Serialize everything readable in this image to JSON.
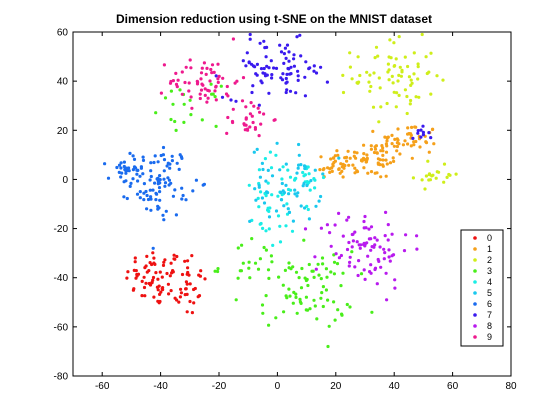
{
  "chart_data": {
    "type": "scatter",
    "title": "Dimension reduction using t-SNE on the MNIST dataset",
    "xlabel": "",
    "ylabel": "",
    "xlim": [
      -70,
      80
    ],
    "ylim": [
      -80,
      60
    ],
    "x_ticks": [
      -60,
      -40,
      -20,
      0,
      20,
      40,
      60,
      80
    ],
    "y_ticks": [
      -80,
      -60,
      -40,
      -20,
      0,
      20,
      40,
      60
    ],
    "grid": false,
    "legend_position": "lower-right",
    "point_count_per_series": [
      100,
      140,
      95,
      120,
      65,
      60,
      120,
      95,
      85,
      90
    ],
    "series": [
      {
        "name": "0",
        "color": "#ee1111",
        "clusters": [
          {
            "cx": -42,
            "cy": -40,
            "sx": 5,
            "sy": 6,
            "n": 60
          },
          {
            "cx": -32,
            "cy": -42,
            "sx": 4,
            "sy": 7,
            "n": 40
          }
        ]
      },
      {
        "name": "1",
        "color": "#f5a01a",
        "clusters": [
          {
            "cx": 30,
            "cy": 8,
            "sx": 7,
            "sy": 4,
            "n": 70
          },
          {
            "cx": 45,
            "cy": 16,
            "sx": 5,
            "sy": 3.5,
            "n": 50
          },
          {
            "cx": 18,
            "cy": 5,
            "sx": 3,
            "sy": 2,
            "n": 20
          }
        ]
      },
      {
        "name": "2",
        "color": "#cfee1a",
        "clusters": [
          {
            "cx": 40,
            "cy": 42,
            "sx": 7,
            "sy": 8,
            "n": 75
          },
          {
            "cx": 55,
            "cy": 2,
            "sx": 4,
            "sy": 3,
            "n": 20
          }
        ]
      },
      {
        "name": "3",
        "color": "#49ee1a",
        "clusters": [
          {
            "cx": 10,
            "cy": -45,
            "sx": 8,
            "sy": 8,
            "n": 80
          },
          {
            "cx": -10,
            "cy": -35,
            "sx": 5,
            "sy": 6,
            "n": 20
          },
          {
            "cx": -30,
            "cy": 30,
            "sx": 5,
            "sy": 4,
            "n": 20
          }
        ]
      },
      {
        "name": "4",
        "color": "#1aeee6",
        "clusters": [
          {
            "cx": 0,
            "cy": -10,
            "sx": 6,
            "sy": 10,
            "n": 45
          },
          {
            "cx": 10,
            "cy": 0,
            "sx": 3,
            "sy": 4,
            "n": 20
          }
        ]
      },
      {
        "name": "5",
        "color": "#1ac8ee",
        "clusters": [
          {
            "cx": 3,
            "cy": -2,
            "sx": 6,
            "sy": 8,
            "n": 60
          }
        ]
      },
      {
        "name": "6",
        "color": "#1a6bee",
        "clusters": [
          {
            "cx": -40,
            "cy": -1,
            "sx": 5,
            "sy": 7,
            "n": 90
          },
          {
            "cx": -52,
            "cy": 3,
            "sx": 3,
            "sy": 3,
            "n": 30
          }
        ]
      },
      {
        "name": "7",
        "color": "#3a1aee",
        "clusters": [
          {
            "cx": 0,
            "cy": 45,
            "sx": 9,
            "sy": 6,
            "n": 85
          },
          {
            "cx": 48,
            "cy": 18,
            "sx": 2,
            "sy": 1.5,
            "n": 10
          }
        ]
      },
      {
        "name": "8",
        "color": "#b81aee",
        "clusters": [
          {
            "cx": 30,
            "cy": -28,
            "sx": 8,
            "sy": 8,
            "n": 85
          }
        ]
      },
      {
        "name": "9",
        "color": "#ee1a8e",
        "clusters": [
          {
            "cx": -25,
            "cy": 40,
            "sx": 6,
            "sy": 5,
            "n": 60
          },
          {
            "cx": -10,
            "cy": 25,
            "sx": 4,
            "sy": 4,
            "n": 30
          }
        ]
      }
    ]
  }
}
